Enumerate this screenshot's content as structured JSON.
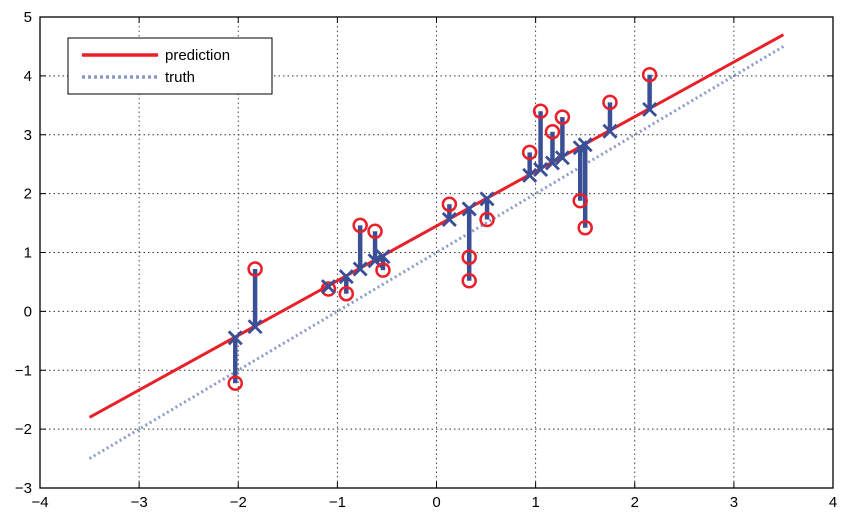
{
  "chart_data": {
    "type": "scatter",
    "title": "",
    "xlabel": "",
    "ylabel": "",
    "xlim": [
      -4,
      4
    ],
    "ylim": [
      -3,
      5
    ],
    "xticks": [
      -4,
      -3,
      -2,
      -1,
      0,
      1,
      2,
      3,
      4
    ],
    "yticks": [
      -3,
      -2,
      -1,
      0,
      1,
      2,
      3,
      4,
      5
    ],
    "grid": true,
    "legend_position": "top-left",
    "colors": {
      "prediction": "#e8202a",
      "truth": "#8a9bc9",
      "residual": "#3a4f96",
      "observed_marker": "#e8202a",
      "predicted_marker": "#3a4f96"
    },
    "series": [
      {
        "name": "prediction",
        "style": "solid",
        "x": [
          -3.5,
          3.5
        ],
        "y": [
          -1.8,
          4.7
        ]
      },
      {
        "name": "truth",
        "style": "dotted",
        "x": [
          -3.5,
          3.5
        ],
        "y": [
          -2.5,
          4.5
        ]
      }
    ],
    "points": [
      {
        "x": -2.03,
        "observed": -1.22,
        "predicted": -0.45
      },
      {
        "x": -1.83,
        "observed": 0.72,
        "predicted": -0.26
      },
      {
        "x": -1.09,
        "observed": 0.38,
        "predicted": 0.42
      },
      {
        "x": -0.91,
        "observed": 0.3,
        "predicted": 0.59
      },
      {
        "x": -0.77,
        "observed": 1.46,
        "predicted": 0.72
      },
      {
        "x": -0.62,
        "observed": 1.36,
        "predicted": 0.86
      },
      {
        "x": -0.54,
        "observed": 0.7,
        "predicted": 0.93
      },
      {
        "x": 0.13,
        "observed": 1.82,
        "predicted": 1.56
      },
      {
        "x": 0.33,
        "observed": 0.92,
        "predicted": 1.74
      },
      {
        "x": 0.33,
        "observed": 0.52,
        "predicted": 1.74
      },
      {
        "x": 0.51,
        "observed": 1.56,
        "predicted": 1.91
      },
      {
        "x": 0.94,
        "observed": 2.7,
        "predicted": 2.31
      },
      {
        "x": 1.05,
        "observed": 3.4,
        "predicted": 2.41
      },
      {
        "x": 1.17,
        "observed": 3.05,
        "predicted": 2.52
      },
      {
        "x": 1.27,
        "observed": 3.3,
        "predicted": 2.61
      },
      {
        "x": 1.45,
        "observed": 1.88,
        "predicted": 2.78
      },
      {
        "x": 1.5,
        "observed": 1.42,
        "predicted": 2.83
      },
      {
        "x": 1.75,
        "observed": 3.55,
        "predicted": 3.06
      },
      {
        "x": 2.15,
        "observed": 4.02,
        "predicted": 3.43
      }
    ]
  }
}
